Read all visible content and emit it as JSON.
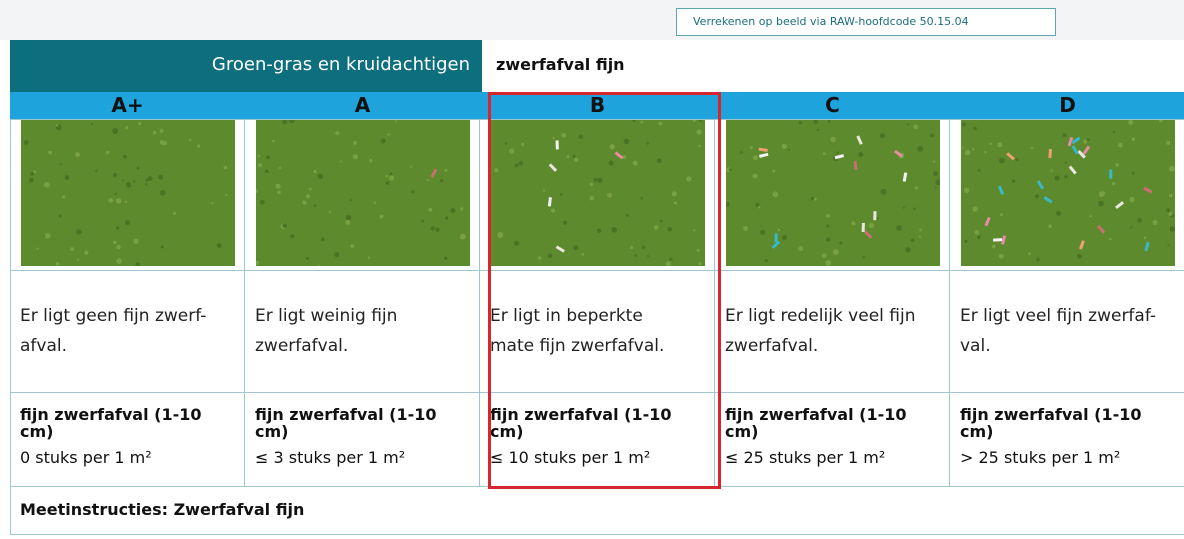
{
  "header": {
    "note": "Verrekenen op beeld via RAW-hoofdcode 50.15.04",
    "category": "Groen-gras en kruidachtigen",
    "topic": "zwerfafval fijn"
  },
  "columns": [
    {
      "grade": "A+",
      "description": "Er ligt geen fijn zwerf-\nafval.",
      "criterion": "fijn zwerfafval (1-10 cm)",
      "count": "0 stuks per 1 m²"
    },
    {
      "grade": "A",
      "description": "Er ligt weinig fijn\nzwerfafval.",
      "criterion": "fijn zwerfafval (1-10 cm)",
      "count": "≤ 3 stuks per 1 m²"
    },
    {
      "grade": "B",
      "description": "Er ligt in beperkte\nmate fijn zwerfafval.",
      "criterion": "fijn zwerfafval (1-10 cm)",
      "count": "≤ 10 stuks per 1 m²"
    },
    {
      "grade": "C",
      "description": "Er ligt redelijk veel fijn\nzwerfafval.",
      "criterion": "fijn zwerfafval (1-10 cm)",
      "count": "≤ 25 stuks per 1 m²"
    },
    {
      "grade": "D",
      "description": "Er ligt veel fijn zwerfaf-\nval.",
      "criterion": "fijn zwerfafval (1-10 cm)",
      "count": "> 25 stuks per 1 m²"
    }
  ],
  "footer": "Meetinstructies: Zwerfafval fijn"
}
